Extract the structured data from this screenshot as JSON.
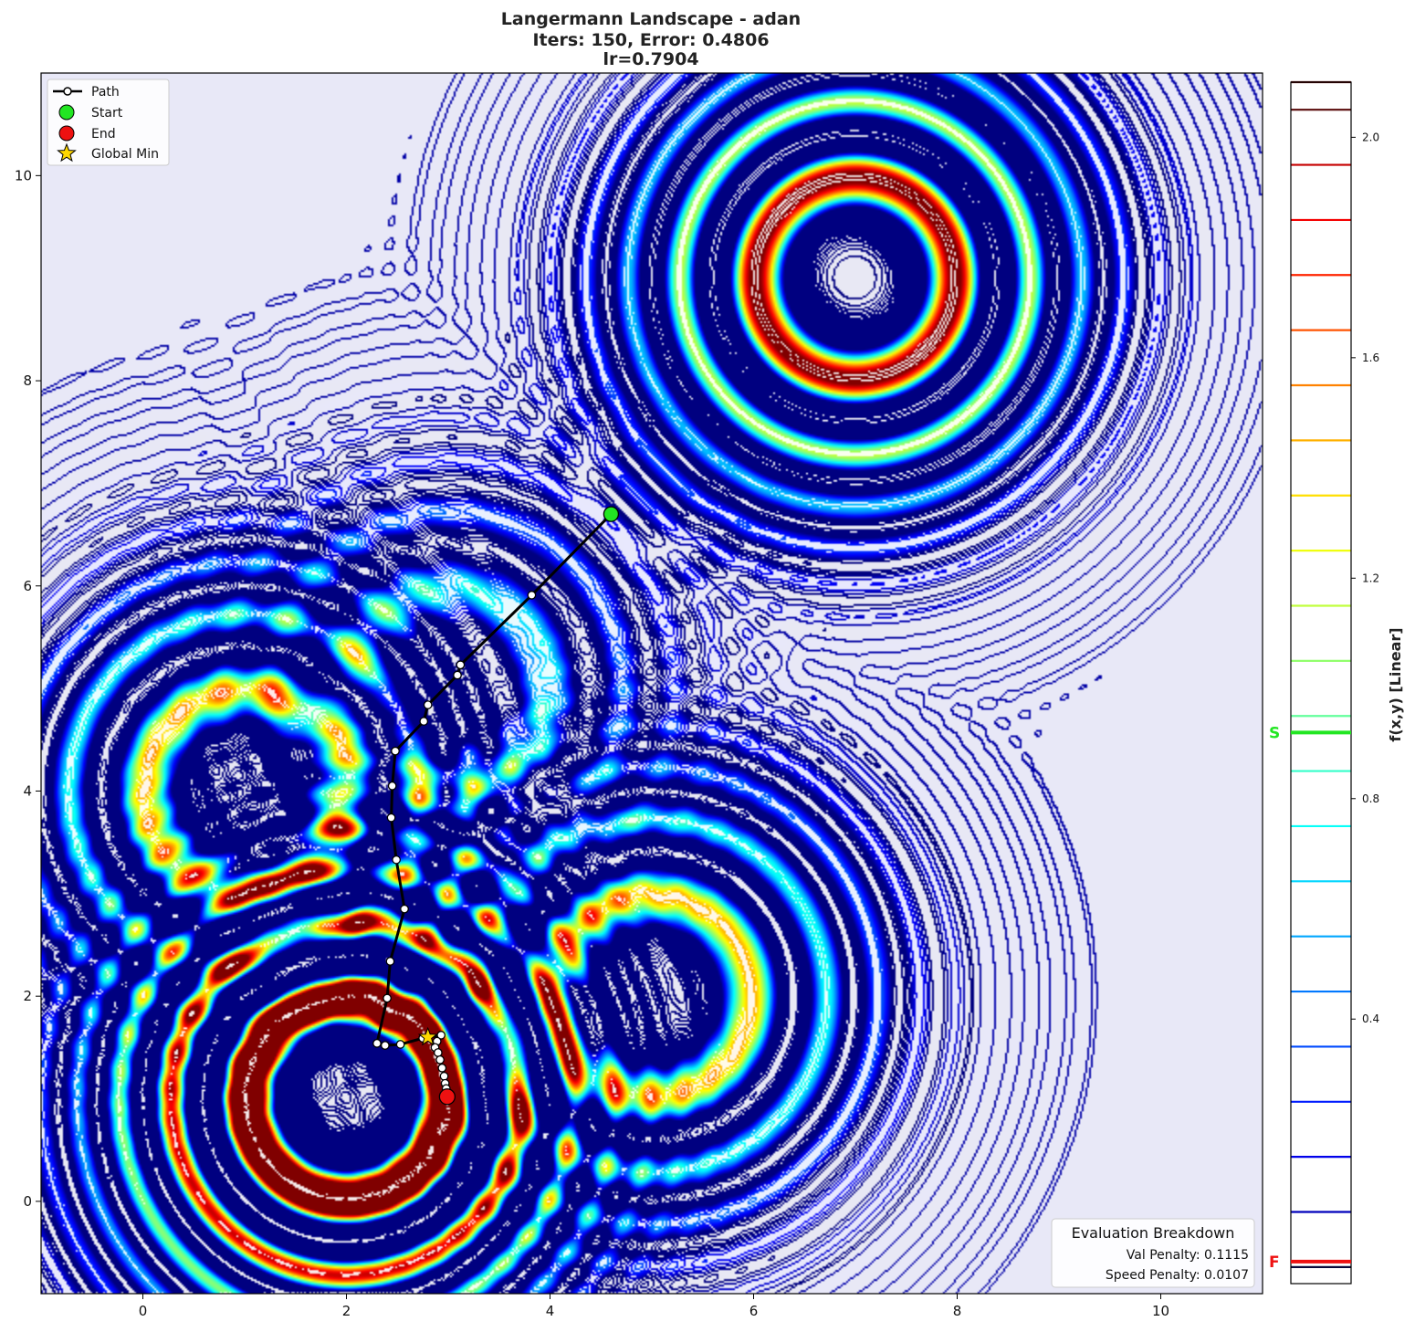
{
  "chart_data": {
    "type": "contour",
    "title_lines": [
      "Langermann Landscape - adan",
      "Iters: 150, Error: 0.4806",
      "lr=0.7904"
    ],
    "xlim": [
      -1,
      11
    ],
    "ylim": [
      -0.9,
      11
    ],
    "x_ticks": [
      0,
      2,
      4,
      6,
      8,
      10
    ],
    "y_ticks": [
      0,
      2,
      4,
      6,
      8,
      10
    ],
    "x_tick_labels": [
      "0",
      "2",
      "4",
      "6",
      "8",
      "10"
    ],
    "y_tick_labels": [
      "0",
      "2",
      "4",
      "6",
      "8",
      "10"
    ],
    "colorbar": {
      "label": "f(x,y) [Linear]",
      "range": [
        -0.08,
        2.1
      ],
      "ticks": [
        0.4,
        0.8,
        1.2,
        1.6,
        2.0
      ],
      "tick_labels": [
        "0.4",
        "0.8",
        "1.2",
        "1.6",
        "2.0"
      ],
      "levels": [
        -0.05,
        0.05,
        0.15,
        0.25,
        0.35,
        0.45,
        0.55,
        0.65,
        0.75,
        0.85,
        0.95,
        1.05,
        1.15,
        1.25,
        1.35,
        1.45,
        1.55,
        1.65,
        1.75,
        1.85,
        1.95,
        2.05,
        2.1
      ],
      "markers": [
        {
          "label": "S",
          "value": 0.92,
          "color": "#22e622"
        },
        {
          "label": "F",
          "value": -0.04,
          "color": "#ee1111"
        }
      ]
    },
    "langermann": {
      "a": [
        [
          3,
          5
        ],
        [
          5,
          2
        ],
        [
          2,
          1
        ],
        [
          1,
          4
        ],
        [
          7,
          9
        ]
      ],
      "c": [
        1,
        2,
        5,
        2,
        3
      ],
      "negated": true
    },
    "path": {
      "points": [
        [
          4.6,
          6.7
        ],
        [
          3.82,
          5.91
        ],
        [
          3.12,
          5.23
        ],
        [
          3.09,
          5.13
        ],
        [
          2.8,
          4.84
        ],
        [
          2.76,
          4.68
        ],
        [
          2.48,
          4.39
        ],
        [
          2.45,
          4.05
        ],
        [
          2.44,
          3.74
        ],
        [
          2.49,
          3.33
        ],
        [
          2.57,
          2.85
        ],
        [
          2.43,
          2.34
        ],
        [
          2.4,
          1.98
        ],
        [
          2.3,
          1.54
        ],
        [
          2.38,
          1.52
        ],
        [
          2.53,
          1.53
        ],
        [
          2.75,
          1.59
        ],
        [
          2.93,
          1.62
        ],
        [
          2.89,
          1.56
        ],
        [
          2.87,
          1.5
        ],
        [
          2.9,
          1.45
        ],
        [
          2.92,
          1.38
        ],
        [
          2.94,
          1.3
        ],
        [
          2.96,
          1.22
        ],
        [
          2.97,
          1.15
        ],
        [
          2.98,
          1.1
        ],
        [
          2.99,
          1.05
        ],
        [
          2.99,
          1.02
        ]
      ],
      "start": [
        4.6,
        6.7
      ],
      "end": [
        2.99,
        1.02
      ]
    },
    "global_min": [
      2.8,
      1.6
    ],
    "legend": {
      "placement": "top-left",
      "entries": [
        "Path",
        "Start",
        "End",
        "Global Min"
      ]
    },
    "evaluation": {
      "title": "Evaluation Breakdown",
      "lines": [
        "Val Penalty: 0.1115",
        "Speed Penalty: 0.0107"
      ],
      "placement": "bottom-right"
    }
  },
  "colors": {
    "path": "#000000",
    "start": "#22e622",
    "end": "#ee1111",
    "global_min": "#ffd700"
  }
}
